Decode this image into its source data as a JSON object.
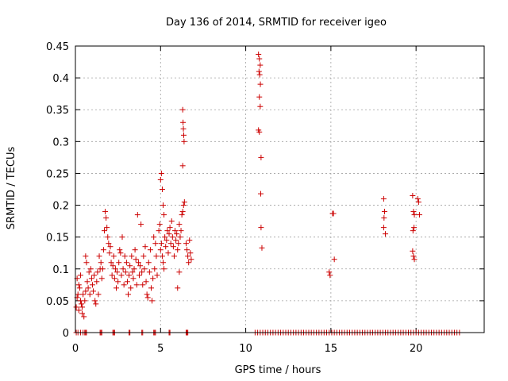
{
  "chart_data": {
    "type": "scatter",
    "title": "Day 136 of 2014, SRMTID for receiver igeo",
    "xlabel": "GPS time / hours",
    "ylabel": "SRMTID / TECUs",
    "xlim": [
      0,
      24
    ],
    "ylim": [
      0,
      0.45
    ],
    "x_ticks": [
      0,
      5,
      10,
      15,
      20
    ],
    "y_ticks": [
      0,
      0.05,
      0.1,
      0.15,
      0.2,
      0.25,
      0.3,
      0.35,
      0.4,
      0.45
    ],
    "x_tick_labels": [
      "0",
      "5",
      "10",
      "15",
      "20"
    ],
    "y_tick_labels": [
      "0",
      "0.05",
      "0.1",
      "0.15",
      "0.2",
      "0.25",
      "0.3",
      "0.35",
      "0.4",
      "0.45"
    ],
    "grid": true,
    "marker": "+",
    "series": [
      {
        "name": "SRMTID",
        "color": "#cc0000",
        "points": [
          [
            0.05,
            0.04
          ],
          [
            0.1,
            0.055
          ],
          [
            0.15,
            0.06
          ],
          [
            0.2,
            0.035
          ],
          [
            0.25,
            0.07
          ],
          [
            0.3,
            0.05
          ],
          [
            0.35,
            0.045
          ],
          [
            0.4,
            0.03
          ],
          [
            0.45,
            0.06
          ],
          [
            0.5,
            0.025
          ],
          [
            0.55,
            0.05
          ],
          [
            0.6,
            0.065
          ],
          [
            0.1,
            0.085
          ],
          [
            0.2,
            0.075
          ],
          [
            0.3,
            0.09
          ],
          [
            0.4,
            0.04
          ],
          [
            0.6,
            0.12
          ],
          [
            0.65,
            0.11
          ],
          [
            0.7,
            0.08
          ],
          [
            0.75,
            0.07
          ],
          [
            0.8,
            0.095
          ],
          [
            0.85,
            0.06
          ],
          [
            0.9,
            0.1
          ],
          [
            0.95,
            0.085
          ],
          [
            1.0,
            0.075
          ],
          [
            1.05,
            0.065
          ],
          [
            1.1,
            0.09
          ],
          [
            1.15,
            0.05
          ],
          [
            1.2,
            0.045
          ],
          [
            1.25,
            0.08
          ],
          [
            1.3,
            0.095
          ],
          [
            1.35,
            0.06
          ],
          [
            1.4,
            0.12
          ],
          [
            1.45,
            0.1
          ],
          [
            1.5,
            0.11
          ],
          [
            1.55,
            0.085
          ],
          [
            1.6,
            0.1
          ],
          [
            1.65,
            0.13
          ],
          [
            1.7,
            0.16
          ],
          [
            1.75,
            0.19
          ],
          [
            1.8,
            0.18
          ],
          [
            1.85,
            0.165
          ],
          [
            1.9,
            0.15
          ],
          [
            1.95,
            0.14
          ],
          [
            2.0,
            0.125
          ],
          [
            2.05,
            0.135
          ],
          [
            2.1,
            0.11
          ],
          [
            2.15,
            0.09
          ],
          [
            2.2,
            0.105
          ],
          [
            2.25,
            0.12
          ],
          [
            2.3,
            0.085
          ],
          [
            2.35,
            0.1
          ],
          [
            2.4,
            0.07
          ],
          [
            2.45,
            0.095
          ],
          [
            2.5,
            0.08
          ],
          [
            2.55,
            0.11
          ],
          [
            2.6,
            0.13
          ],
          [
            2.65,
            0.125
          ],
          [
            2.7,
            0.09
          ],
          [
            2.75,
            0.15
          ],
          [
            2.8,
            0.1
          ],
          [
            2.85,
            0.075
          ],
          [
            2.9,
            0.12
          ],
          [
            2.95,
            0.095
          ],
          [
            3.0,
            0.11
          ],
          [
            3.05,
            0.08
          ],
          [
            3.1,
            0.06
          ],
          [
            3.15,
            0.09
          ],
          [
            3.2,
            0.105
          ],
          [
            3.25,
            0.07
          ],
          [
            3.3,
            0.12
          ],
          [
            3.35,
            0.095
          ],
          [
            3.4,
            0.085
          ],
          [
            3.45,
            0.1
          ],
          [
            3.5,
            0.13
          ],
          [
            3.55,
            0.115
          ],
          [
            3.6,
            0.075
          ],
          [
            3.65,
            0.185
          ],
          [
            3.7,
            0.11
          ],
          [
            3.75,
            0.09
          ],
          [
            3.8,
            0.105
          ],
          [
            3.85,
            0.17
          ],
          [
            3.9,
            0.095
          ],
          [
            3.95,
            0.075
          ],
          [
            4.0,
            0.12
          ],
          [
            4.05,
            0.1
          ],
          [
            4.1,
            0.135
          ],
          [
            4.15,
            0.08
          ],
          [
            4.2,
            0.06
          ],
          [
            4.25,
            0.055
          ],
          [
            4.3,
            0.11
          ],
          [
            4.35,
            0.095
          ],
          [
            4.4,
            0.13
          ],
          [
            4.45,
            0.07
          ],
          [
            4.5,
            0.05
          ],
          [
            4.55,
            0.085
          ],
          [
            4.6,
            0.15
          ],
          [
            4.65,
            0.1
          ],
          [
            4.7,
            0.14
          ],
          [
            4.75,
            0.12
          ],
          [
            4.8,
            0.09
          ],
          [
            4.9,
            0.16
          ],
          [
            4.95,
            0.17
          ],
          [
            5.0,
            0.24
          ],
          [
            5.05,
            0.25
          ],
          [
            5.1,
            0.225
          ],
          [
            5.15,
            0.2
          ],
          [
            5.2,
            0.185
          ],
          [
            5.0,
            0.13
          ],
          [
            5.05,
            0.14
          ],
          [
            5.1,
            0.12
          ],
          [
            5.15,
            0.11
          ],
          [
            5.2,
            0.1
          ],
          [
            5.25,
            0.15
          ],
          [
            5.3,
            0.135
          ],
          [
            5.35,
            0.145
          ],
          [
            5.4,
            0.16
          ],
          [
            5.45,
            0.125
          ],
          [
            5.5,
            0.155
          ],
          [
            5.55,
            0.165
          ],
          [
            5.6,
            0.14
          ],
          [
            5.65,
            0.175
          ],
          [
            5.7,
            0.15
          ],
          [
            5.75,
            0.135
          ],
          [
            5.8,
            0.12
          ],
          [
            5.85,
            0.16
          ],
          [
            5.9,
            0.145
          ],
          [
            5.95,
            0.155
          ],
          [
            6.0,
            0.13
          ],
          [
            6.05,
            0.14
          ],
          [
            6.1,
            0.17
          ],
          [
            6.15,
            0.15
          ],
          [
            6.2,
            0.16
          ],
          [
            6.25,
            0.185
          ],
          [
            6.3,
            0.19
          ],
          [
            6.35,
            0.2
          ],
          [
            6.4,
            0.205
          ],
          [
            6.3,
            0.35
          ],
          [
            6.32,
            0.33
          ],
          [
            6.34,
            0.32
          ],
          [
            6.36,
            0.31
          ],
          [
            6.38,
            0.3
          ],
          [
            6.3,
            0.262
          ],
          [
            6.1,
            0.095
          ],
          [
            6.0,
            0.07
          ],
          [
            6.5,
            0.14
          ],
          [
            6.55,
            0.13
          ],
          [
            6.6,
            0.12
          ],
          [
            6.65,
            0.11
          ],
          [
            6.7,
            0.145
          ],
          [
            6.75,
            0.125
          ],
          [
            6.8,
            0.115
          ],
          [
            10.75,
            0.437
          ],
          [
            10.8,
            0.43
          ],
          [
            10.85,
            0.42
          ],
          [
            10.78,
            0.41
          ],
          [
            10.82,
            0.405
          ],
          [
            10.86,
            0.39
          ],
          [
            10.8,
            0.37
          ],
          [
            10.85,
            0.355
          ],
          [
            10.75,
            0.318
          ],
          [
            10.8,
            0.315
          ],
          [
            10.9,
            0.275
          ],
          [
            10.88,
            0.218
          ],
          [
            10.9,
            0.165
          ],
          [
            10.95,
            0.133
          ],
          [
            14.9,
            0.095
          ],
          [
            14.95,
            0.09
          ],
          [
            15.1,
            0.187
          ],
          [
            15.15,
            0.187
          ],
          [
            15.2,
            0.115
          ],
          [
            18.1,
            0.21
          ],
          [
            18.15,
            0.19
          ],
          [
            18.12,
            0.18
          ],
          [
            18.1,
            0.165
          ],
          [
            18.2,
            0.155
          ],
          [
            19.8,
            0.215
          ],
          [
            19.85,
            0.19
          ],
          [
            19.9,
            0.185
          ],
          [
            19.88,
            0.165
          ],
          [
            19.82,
            0.16
          ],
          [
            19.8,
            0.128
          ],
          [
            19.85,
            0.12
          ],
          [
            19.9,
            0.115
          ],
          [
            20.1,
            0.21
          ],
          [
            20.15,
            0.205
          ],
          [
            20.2,
            0.185
          ]
        ]
      }
    ],
    "zero_points_x": [
      0.05,
      0.15,
      0.3,
      0.45,
      0.55,
      0.6,
      0.65,
      1.45,
      1.5,
      1.55,
      2.2,
      2.25,
      2.3,
      3.15,
      3.2,
      3.9,
      3.95,
      4.6,
      4.65,
      4.7,
      5.5,
      5.55,
      6.5,
      6.55,
      6.6,
      10.55,
      10.7,
      10.85,
      11.0,
      11.15,
      11.3,
      11.45,
      11.6,
      11.75,
      11.9,
      12.05,
      12.2,
      12.35,
      12.5,
      12.65,
      12.8,
      12.95,
      13.1,
      13.25,
      13.4,
      13.55,
      13.7,
      13.85,
      14.0,
      14.15,
      14.3,
      14.45,
      14.6,
      14.75,
      14.9,
      15.05,
      15.2,
      15.35,
      15.5,
      15.65,
      15.8,
      15.95,
      16.1,
      16.25,
      16.4,
      16.55,
      16.7,
      16.85,
      17.0,
      17.15,
      17.3,
      17.45,
      17.6,
      17.75,
      17.9,
      18.05,
      18.2,
      18.35,
      18.5,
      18.65,
      18.8,
      18.95,
      19.1,
      19.25,
      19.4,
      19.55,
      19.7,
      19.85,
      20.0,
      20.15,
      20.3,
      20.45,
      20.6,
      20.75,
      20.9,
      21.05,
      21.2,
      21.35,
      21.5,
      21.65,
      21.8,
      21.95,
      22.1,
      22.25,
      22.4,
      22.55
    ]
  },
  "colors": {
    "marker": "#cc0000",
    "grid": "#a0a0a0",
    "axis": "#000000"
  }
}
